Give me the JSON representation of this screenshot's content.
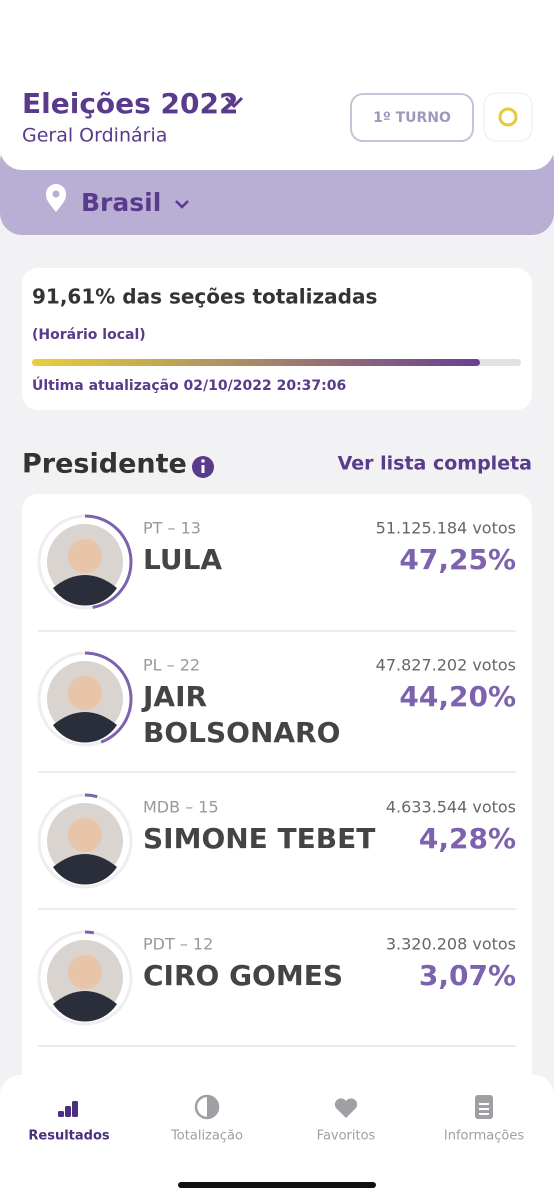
{
  "header": {
    "title": "Eleições 2022",
    "subtitle": "Geral Ordinária",
    "round_button": "1º TURNO",
    "location": "Brasil"
  },
  "status": {
    "text": "91,61% das seções totalizadas",
    "share": 91.61,
    "note": "(Horário local)",
    "updated": "Última atualização 02/10/2022 20:37:06"
  },
  "section": {
    "title": "Presidente",
    "link": "Ver lista completa"
  },
  "candidates": [
    {
      "party": "PT – 13",
      "name": [
        "LULA"
      ],
      "votes": "51.125.184 votos",
      "percent": "47,25%",
      "share": 47.25
    },
    {
      "party": "PL – 22",
      "name": [
        "JAIR",
        "BOLSONARO"
      ],
      "votes": "47.827.202 votos",
      "percent": "44,20%",
      "share": 44.2
    },
    {
      "party": "MDB – 15",
      "name": [
        "SIMONE TEBET"
      ],
      "votes": "4.633.544 votos",
      "percent": "4,28%",
      "share": 4.28
    },
    {
      "party": "PDT – 12",
      "name": [
        "CIRO GOMES"
      ],
      "votes": "3.320.208 votos",
      "percent": "3,07%",
      "share": 3.07
    }
  ],
  "nav": [
    "Resultados",
    "Totalização",
    "Favoritos",
    "Informações"
  ]
}
